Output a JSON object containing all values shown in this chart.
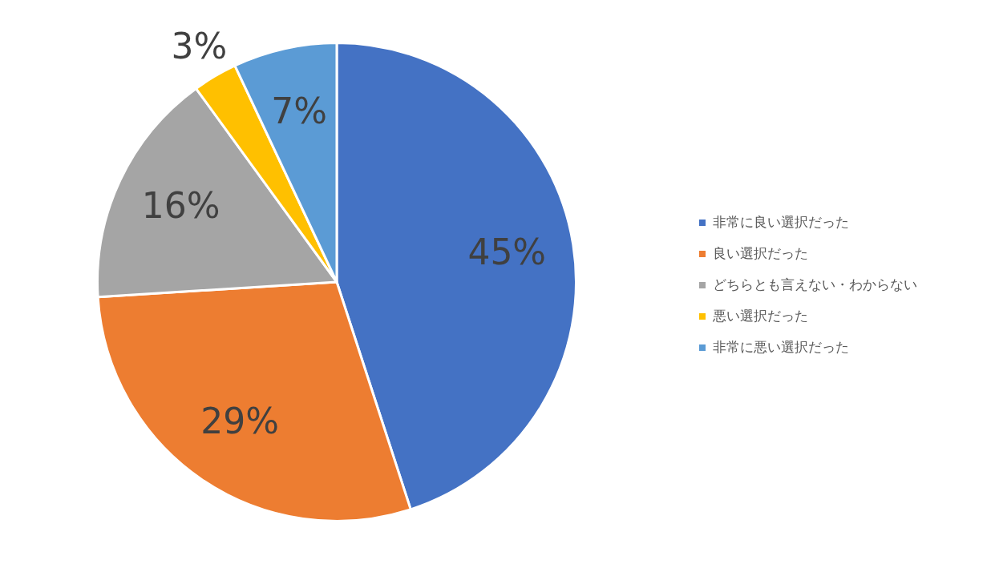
{
  "chart_data": {
    "type": "pie",
    "categories": [
      "非常に良い選択だった",
      "良い選択だった",
      "どちらとも言えない・わからない",
      "悪い選択だった",
      "非常に悪い選択だった"
    ],
    "values": [
      45,
      29,
      16,
      3,
      7
    ],
    "colors": [
      "#4472c4",
      "#ed7d31",
      "#a5a5a5",
      "#ffc000",
      "#5b9bd5"
    ],
    "value_labels": [
      "45%",
      "29%",
      "16%",
      "3%",
      "7%"
    ],
    "legend": "right"
  }
}
